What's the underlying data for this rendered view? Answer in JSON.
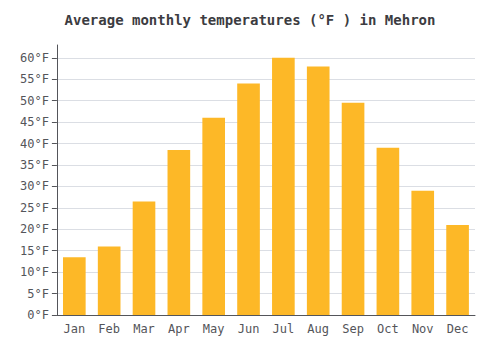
{
  "chart_data": {
    "type": "bar",
    "title": "Average monthly temperatures (°F ) in Mehron",
    "categories": [
      "Jan",
      "Feb",
      "Mar",
      "Apr",
      "May",
      "Jun",
      "Jul",
      "Aug",
      "Sep",
      "Oct",
      "Nov",
      "Dec"
    ],
    "values": [
      13.5,
      16.0,
      26.5,
      38.5,
      46.0,
      54.0,
      60.0,
      58.0,
      49.5,
      39.0,
      29.0,
      21.0
    ],
    "color": "#FDB827",
    "ylim": [
      0,
      63
    ],
    "yticks": [
      {
        "value": 0,
        "label": "0°F"
      },
      {
        "value": 5,
        "label": "5°F"
      },
      {
        "value": 10,
        "label": "10°F"
      },
      {
        "value": 15,
        "label": "15°F"
      },
      {
        "value": 20,
        "label": "20°F"
      },
      {
        "value": 25,
        "label": "25°F"
      },
      {
        "value": 30,
        "label": "30°F"
      },
      {
        "value": 35,
        "label": "35°F"
      },
      {
        "value": 40,
        "label": "40°F"
      },
      {
        "value": 45,
        "label": "45°F"
      },
      {
        "value": 50,
        "label": "50°F"
      },
      {
        "value": 55,
        "label": "55°F"
      },
      {
        "value": 60,
        "label": "60°F"
      }
    ],
    "grid": true
  }
}
